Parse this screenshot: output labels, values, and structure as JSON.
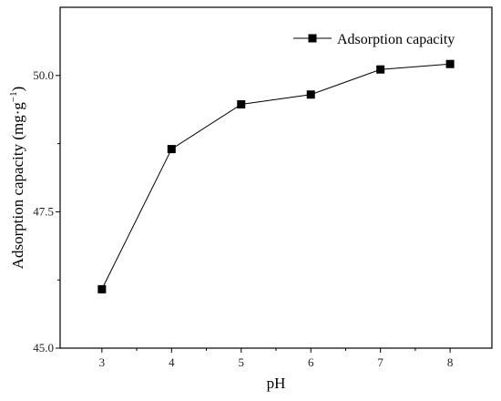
{
  "chart_data": {
    "type": "line",
    "x": [
      3,
      4,
      5,
      6,
      7,
      8
    ],
    "series": [
      {
        "name": "Adsorption capacity",
        "values": [
          46.08,
          48.65,
          49.47,
          49.65,
          50.11,
          50.21
        ]
      }
    ],
    "xlabel": "pH",
    "ylabel_main": "Adsorption capacity (mg·g",
    "ylabel_sup": "−1",
    "ylabel_tail": ")",
    "xlim": [
      2.4,
      8.6
    ],
    "ylim": [
      45.0,
      51.25
    ],
    "xticks": [
      3,
      4,
      5,
      6,
      7,
      8
    ],
    "xtick_labels": [
      "3",
      "4",
      "5",
      "6",
      "7",
      "8"
    ],
    "yticks": [
      45.0,
      47.5,
      50.0
    ],
    "ytick_labels": [
      "45.0",
      "47.5",
      "50.0"
    ],
    "grid": false,
    "legend_position": "top-right",
    "marker": "square",
    "line_color": "#000000"
  }
}
